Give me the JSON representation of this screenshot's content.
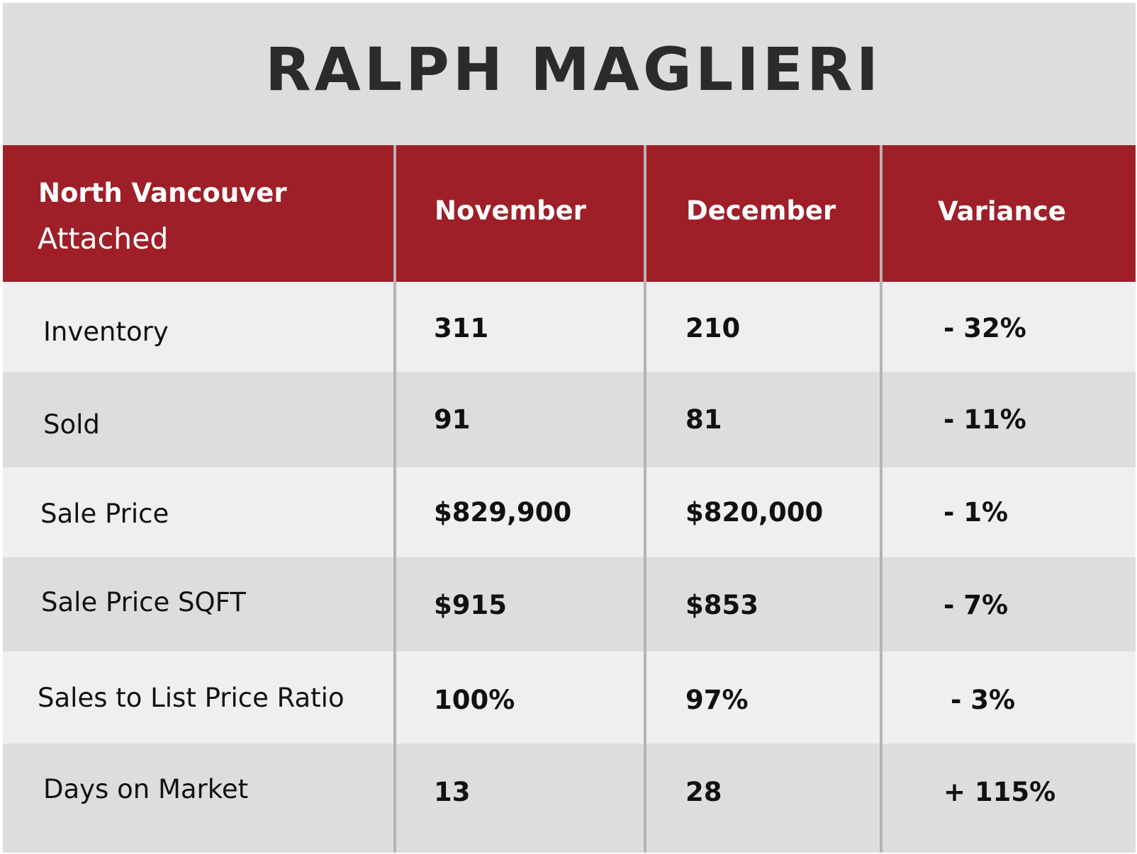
{
  "brand": "RALPH MAGLIERI",
  "table": {
    "header": {
      "region": "North Vancouver",
      "property_type": "Attached",
      "col_nov": "November",
      "col_dec": "December",
      "col_var": "Variance"
    },
    "rows": [
      {
        "metric": "Inventory",
        "november": "311",
        "december": "210",
        "variance": "- 32%"
      },
      {
        "metric": "Sold",
        "november": "91",
        "december": "81",
        "variance": "- 11%"
      },
      {
        "metric": "Sale Price",
        "november": "$829,900",
        "december": "$820,000",
        "variance": "- 1%"
      },
      {
        "metric": "Sale Price SQFT",
        "november": "$915",
        "december": "$853",
        "variance": "- 7%"
      },
      {
        "metric": "Sales to List Price Ratio",
        "november": "100%",
        "december": "97%",
        "variance": "- 3%"
      },
      {
        "metric": "Days on Market",
        "november": "13",
        "december": "28",
        "variance": "+ 115%"
      }
    ]
  },
  "colors": {
    "header_red": "#9e1f28",
    "row_light": "#efefef",
    "row_dark": "#dddddd",
    "divider": "#b4b4b4",
    "text": "#111111"
  }
}
